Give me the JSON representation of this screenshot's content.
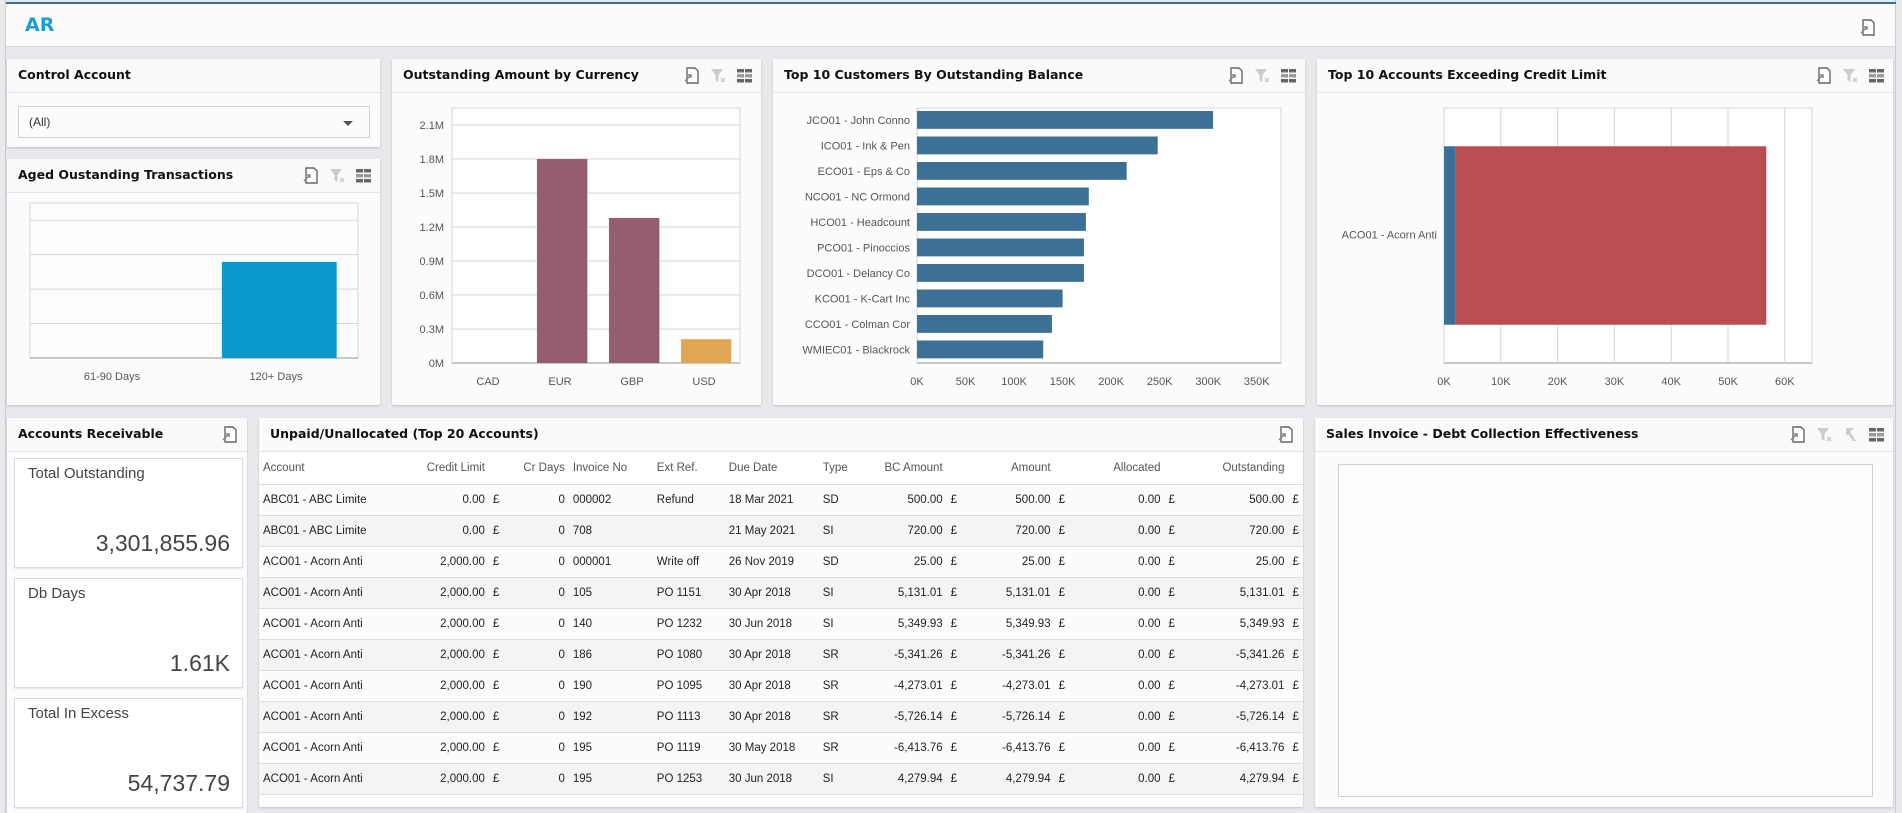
{
  "app": {
    "title": "AR"
  },
  "colors": {
    "brand": "#1a9cd4",
    "bar_aged": "#0a99cb",
    "currency_bars": [
      "#0099cc",
      "#955e70",
      "#955e70",
      "#e2a652"
    ],
    "customer_bar": "#3c7095",
    "credit_limit": "#3c7095",
    "excess": "#b94d52"
  },
  "panels": {
    "control_account": {
      "title": "Control Account",
      "select_value": "(All)"
    },
    "aged": {
      "title": "Aged Oustanding Transactions"
    },
    "currency": {
      "title": "Outstanding Amount by Currency"
    },
    "top_customers": {
      "title": "Top 10 Customers By Outstanding Balance"
    },
    "credit_limit": {
      "title": "Top 10 Accounts Exceeding Credit Limit"
    },
    "accounts_receivable": {
      "title": "Accounts Receivable",
      "kpis": [
        {
          "label": "Total Outstanding",
          "value": "3,301,855.96"
        },
        {
          "label": "Db Days",
          "value": "1.61K"
        },
        {
          "label": "Total In Excess",
          "value": "54,737.79"
        }
      ]
    },
    "unpaid": {
      "title": "Unpaid/Unallocated (Top 20 Accounts)",
      "columns": [
        "Account",
        "Credit Limit",
        "",
        "Cr Days",
        "Invoice No",
        "Ext Ref.",
        "Due Date",
        "Type",
        "BC Amount",
        "",
        "Amount",
        "",
        "Allocated",
        "",
        "Outstanding",
        ""
      ],
      "rows": [
        [
          "ABC01 - ABC Limite",
          "0.00",
          "£",
          "0",
          "000002",
          "Refund",
          "18 Mar 2021",
          "SD",
          "500.00",
          "£",
          "500.00",
          "£",
          "0.00",
          "£",
          "500.00",
          "£"
        ],
        [
          "ABC01 - ABC Limite",
          "0.00",
          "£",
          "0",
          "708",
          "",
          "21 May 2021",
          "SI",
          "720.00",
          "£",
          "720.00",
          "£",
          "0.00",
          "£",
          "720.00",
          "£"
        ],
        [
          "ACO01 - Acorn Anti",
          "2,000.00",
          "£",
          "0",
          "000001",
          "Write off",
          "26 Nov 2019",
          "SD",
          "25.00",
          "£",
          "25.00",
          "£",
          "0.00",
          "£",
          "25.00",
          "£"
        ],
        [
          "ACO01 - Acorn Anti",
          "2,000.00",
          "£",
          "0",
          "105",
          "PO 1151",
          "30 Apr 2018",
          "SI",
          "5,131.01",
          "£",
          "5,131.01",
          "£",
          "0.00",
          "£",
          "5,131.01",
          "£"
        ],
        [
          "ACO01 - Acorn Anti",
          "2,000.00",
          "£",
          "0",
          "140",
          "PO 1232",
          "30 Jun 2018",
          "SI",
          "5,349.93",
          "£",
          "5,349.93",
          "£",
          "0.00",
          "£",
          "5,349.93",
          "£"
        ],
        [
          "ACO01 - Acorn Anti",
          "2,000.00",
          "£",
          "0",
          "186",
          "PO 1080",
          "30 Apr 2018",
          "SR",
          "-5,341.26",
          "£",
          "-5,341.26",
          "£",
          "0.00",
          "£",
          "-5,341.26",
          "£"
        ],
        [
          "ACO01 - Acorn Anti",
          "2,000.00",
          "£",
          "0",
          "190",
          "PO 1095",
          "30 Apr 2018",
          "SR",
          "-4,273.01",
          "£",
          "-4,273.01",
          "£",
          "0.00",
          "£",
          "-4,273.01",
          "£"
        ],
        [
          "ACO01 - Acorn Anti",
          "2,000.00",
          "£",
          "0",
          "192",
          "PO 1113",
          "30 Apr 2018",
          "SR",
          "-5,726.14",
          "£",
          "-5,726.14",
          "£",
          "0.00",
          "£",
          "-5,726.14",
          "£"
        ],
        [
          "ACO01 - Acorn Anti",
          "2,000.00",
          "£",
          "0",
          "195",
          "PO 1119",
          "30 May 2018",
          "SR",
          "-6,413.76",
          "£",
          "-6,413.76",
          "£",
          "0.00",
          "£",
          "-6,413.76",
          "£"
        ],
        [
          "ACO01 - Acorn Anti",
          "2,000.00",
          "£",
          "0",
          "195",
          "PO 1253",
          "30 Jun 2018",
          "SI",
          "4,279.94",
          "£",
          "4,279.94",
          "£",
          "0.00",
          "£",
          "4,279.94",
          "£"
        ]
      ]
    },
    "sales_invoice": {
      "title": "Sales Invoice - Debt Collection Effectiveness"
    }
  },
  "icons": {
    "export": "export-icon",
    "clear_filter": "clear-filter-icon",
    "drill_up": "drill-up-icon",
    "view_toggle": "view-toggle-icon"
  },
  "chart_data": [
    {
      "id": "aged",
      "type": "bar",
      "title": "Aged Oustanding Transactions",
      "categories": [
        "61-90 Days",
        "120+ Days"
      ],
      "values": [
        0,
        0.62
      ],
      "value_units": "fraction of plot height (no axis labels shown)",
      "ylim": [
        0,
        1
      ],
      "grid": true
    },
    {
      "id": "currency",
      "type": "bar",
      "title": "Outstanding Amount by Currency",
      "categories": [
        "CAD",
        "EUR",
        "GBP",
        "USD"
      ],
      "values": [
        0,
        1800000,
        1280000,
        210000
      ],
      "yticks": [
        "0M",
        "0.3M",
        "0.6M",
        "0.9M",
        "1.2M",
        "1.5M",
        "1.8M",
        "2.1M"
      ],
      "ylim": [
        0,
        2250000
      ],
      "grid": true
    },
    {
      "id": "top_customers",
      "type": "bar",
      "orientation": "horizontal",
      "title": "Top 10 Customers By Outstanding Balance",
      "categories": [
        "JCO01 - John Conno",
        "ICO01 - Ink & Pen",
        "ECO01 - Eps & Co",
        "NCO01 - NC Ormond",
        "HCO01 - Headcount",
        "PCO01 - Pinoccios",
        "DCO01 - Delancy Co",
        "KCO01 - K-Cart Inc",
        "CCO01 - Colman Cor",
        "WMIEC01 - Blackrock"
      ],
      "values": [
        305000,
        248000,
        216000,
        177000,
        174000,
        172000,
        172000,
        150000,
        139000,
        130000
      ],
      "xticks": [
        "0K",
        "50K",
        "100K",
        "150K",
        "200K",
        "250K",
        "300K",
        "350K"
      ],
      "xlim": [
        0,
        375000
      ],
      "grid": false
    },
    {
      "id": "credit_limit",
      "type": "bar",
      "orientation": "horizontal",
      "stacked": true,
      "title": "Top 10 Accounts Exceeding Credit Limit",
      "categories": [
        "ACO01 - Acorn Anti"
      ],
      "series": [
        {
          "name": "Credit Limit",
          "values": [
            2000
          ]
        },
        {
          "name": "Excess",
          "values": [
            54737.79
          ]
        }
      ],
      "xticks": [
        "0K",
        "10K",
        "20K",
        "30K",
        "40K",
        "50K",
        "60K"
      ],
      "xlim": [
        0,
        65000
      ],
      "grid": true
    }
  ]
}
